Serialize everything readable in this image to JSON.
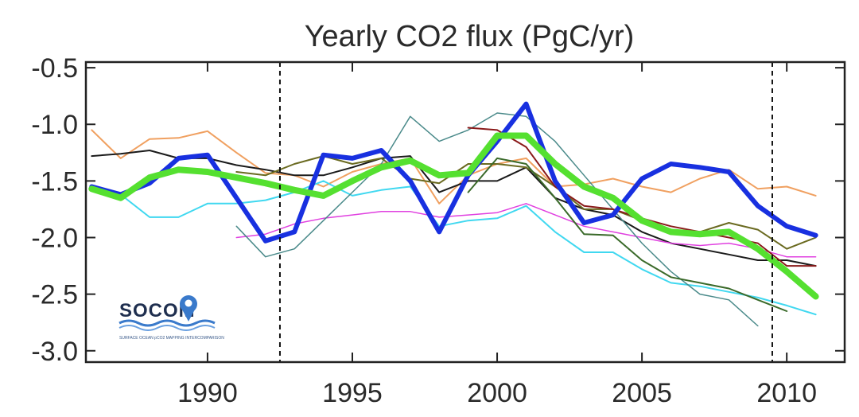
{
  "chart_data": {
    "type": "line",
    "title": "Yearly CO2 flux (PgC/yr)",
    "xlabel": "",
    "ylabel": "",
    "xlim": [
      1985.8,
      2012
    ],
    "ylim": [
      -3.1,
      -0.45
    ],
    "xticks": [
      1990,
      1995,
      2000,
      2005,
      2010
    ],
    "yticks": [
      -0.5,
      -1.0,
      -1.5,
      -2.0,
      -2.5,
      -3.0
    ],
    "xtick_labels": [
      "1990",
      "1995",
      "2000",
      "2005",
      "2010"
    ],
    "ytick_labels": [
      "-0.5",
      "-1.0",
      "-1.5",
      "-2.0",
      "-2.5",
      "-3.0"
    ],
    "vlines": [
      1992.5,
      2009.5
    ],
    "grid": false,
    "logo": {
      "text": "SOCOM",
      "subtitle": "SURFACE OCEAN pCO2 MAPPING INTERCOMPARISON"
    },
    "series": [
      {
        "name": "orange",
        "color": "#f0a060",
        "width": 2,
        "x": [
          1986,
          1987,
          1988,
          1989,
          1990,
          1991,
          1992,
          1993,
          1994,
          1995,
          1996,
          1997,
          1998,
          1999,
          2000,
          2001,
          2002,
          2003,
          2004,
          2005,
          2006,
          2007,
          2008,
          2009,
          2010,
          2011
        ],
        "values": [
          -1.05,
          -1.3,
          -1.13,
          -1.12,
          -1.06,
          -1.25,
          -1.43,
          -1.45,
          -1.55,
          -1.42,
          -1.35,
          -1.3,
          -1.7,
          -1.45,
          -1.35,
          -1.3,
          -1.55,
          -1.53,
          -1.48,
          -1.55,
          -1.6,
          -1.48,
          -1.4,
          -1.57,
          -1.55,
          -1.63
        ]
      },
      {
        "name": "black",
        "color": "#1a1a1a",
        "width": 2,
        "x": [
          1986,
          1987,
          1988,
          1989,
          1990,
          1991,
          1992,
          1993,
          1994,
          1995,
          1996,
          1997,
          1998,
          1999,
          2000,
          2001,
          2002,
          2003,
          2004,
          2005,
          2006,
          2007,
          2008,
          2009,
          2010,
          2011
        ],
        "values": [
          -1.28,
          -1.26,
          -1.23,
          -1.3,
          -1.3,
          -1.36,
          -1.4,
          -1.45,
          -1.45,
          -1.38,
          -1.3,
          -1.28,
          -1.6,
          -1.5,
          -1.5,
          -1.38,
          -1.65,
          -1.75,
          -1.8,
          -1.95,
          -2.05,
          -2.1,
          -2.15,
          -2.2,
          -2.2,
          -2.25
        ]
      },
      {
        "name": "cyan",
        "color": "#40d8f0",
        "width": 2,
        "x": [
          1986,
          1987,
          1988,
          1989,
          1990,
          1991,
          1992,
          1993,
          1994,
          1995,
          1996,
          1997,
          1998,
          1999,
          2000,
          2001,
          2002,
          2003,
          2004,
          2005,
          2006,
          2007,
          2008,
          2009,
          2010,
          2011
        ],
        "values": [
          -1.55,
          -1.62,
          -1.82,
          -1.82,
          -1.7,
          -1.7,
          -1.67,
          -1.6,
          -1.5,
          -1.63,
          -1.58,
          -1.55,
          -1.9,
          -1.85,
          -1.83,
          -1.72,
          -1.95,
          -2.13,
          -2.13,
          -2.28,
          -2.4,
          -2.43,
          -2.48,
          -2.53,
          -2.6,
          -2.68
        ]
      },
      {
        "name": "magenta",
        "color": "#e040e0",
        "width": 1.5,
        "x": [
          1991,
          1992,
          1993,
          1994,
          1995,
          1996,
          1997,
          1998,
          1999,
          2000,
          2001,
          2002,
          2003,
          2004,
          2005,
          2006,
          2007,
          2008,
          2009,
          2010,
          2011
        ],
        "values": [
          -2.0,
          -1.97,
          -1.88,
          -1.83,
          -1.8,
          -1.77,
          -1.77,
          -1.82,
          -1.8,
          -1.78,
          -1.7,
          -1.8,
          -1.9,
          -1.95,
          -2.0,
          -2.05,
          -2.07,
          -2.05,
          -2.1,
          -2.17,
          -2.17
        ]
      },
      {
        "name": "teal",
        "color": "#4a8a8a",
        "width": 1.5,
        "x": [
          1991,
          1992,
          1993,
          1994,
          1995,
          1996,
          1997,
          1998,
          1999,
          2000,
          2001,
          2002,
          2003,
          2004,
          2005,
          2006,
          2007,
          2008,
          2009
        ],
        "values": [
          -1.9,
          -2.17,
          -2.1,
          -1.85,
          -1.6,
          -1.35,
          -0.93,
          -1.15,
          -1.05,
          -0.9,
          -0.93,
          -1.15,
          -1.45,
          -1.75,
          -2.05,
          -2.3,
          -2.5,
          -2.55,
          -2.78
        ]
      },
      {
        "name": "olive",
        "color": "#6a6a20",
        "width": 2,
        "x": [
          1991,
          1992,
          1993,
          1994,
          1995,
          1996,
          1997,
          1998,
          1999,
          2000,
          2001,
          2002,
          2003,
          2004,
          2005,
          2006,
          2007,
          2008,
          2009,
          2010,
          2011
        ],
        "values": [
          -1.42,
          -1.45,
          -1.35,
          -1.28,
          -1.35,
          -1.3,
          -1.48,
          -1.52,
          -1.35,
          -1.35,
          -1.38,
          -1.55,
          -1.75,
          -1.75,
          -1.85,
          -1.95,
          -1.95,
          -1.87,
          -1.93,
          -2.1,
          -2.0
        ]
      },
      {
        "name": "darkred",
        "color": "#8a1a1a",
        "width": 2,
        "x": [
          1999,
          2000,
          2001,
          2002,
          2003,
          2004,
          2005,
          2006,
          2007,
          2008,
          2009,
          2010,
          2011
        ],
        "values": [
          -1.03,
          -1.05,
          -1.2,
          -1.55,
          -1.72,
          -1.75,
          -1.83,
          -1.9,
          -1.95,
          -2.0,
          -2.05,
          -2.25,
          -2.25
        ]
      },
      {
        "name": "darkgreen",
        "color": "#3a6a2a",
        "width": 2,
        "x": [
          1999,
          2000,
          2001,
          2002,
          2003,
          2004,
          2005,
          2006,
          2007,
          2008,
          2009,
          2010
        ],
        "values": [
          -1.6,
          -1.3,
          -1.35,
          -1.65,
          -1.97,
          -1.98,
          -2.2,
          -2.35,
          -2.4,
          -2.45,
          -2.55,
          -2.65
        ]
      },
      {
        "name": "blue",
        "color": "#1830e0",
        "width": 6,
        "x": [
          1986,
          1987,
          1988,
          1989,
          1990,
          1991,
          1992,
          1993,
          1994,
          1995,
          1996,
          1997,
          1998,
          1999,
          2000,
          2001,
          2002,
          2003,
          2004,
          2005,
          2006,
          2007,
          2008,
          2009,
          2010,
          2011
        ],
        "values": [
          -1.55,
          -1.62,
          -1.52,
          -1.3,
          -1.27,
          -1.65,
          -2.03,
          -1.95,
          -1.27,
          -1.3,
          -1.23,
          -1.5,
          -1.95,
          -1.45,
          -1.15,
          -0.82,
          -1.5,
          -1.87,
          -1.8,
          -1.48,
          -1.35,
          -1.38,
          -1.42,
          -1.72,
          -1.9,
          -1.98
        ]
      },
      {
        "name": "green",
        "color": "#55e030",
        "width": 8,
        "x": [
          1986,
          1987,
          1988,
          1989,
          1990,
          1991,
          1992,
          1993,
          1994,
          1995,
          1996,
          1997,
          1998,
          1999,
          2000,
          2001,
          2002,
          2003,
          2004,
          2005,
          2006,
          2007,
          2008,
          2009,
          2010,
          2011
        ],
        "values": [
          -1.57,
          -1.65,
          -1.47,
          -1.4,
          -1.42,
          -1.47,
          -1.52,
          -1.58,
          -1.63,
          -1.5,
          -1.38,
          -1.32,
          -1.45,
          -1.43,
          -1.1,
          -1.1,
          -1.35,
          -1.55,
          -1.65,
          -1.85,
          -1.95,
          -1.97,
          -1.95,
          -2.1,
          -2.3,
          -2.52
        ]
      }
    ]
  }
}
